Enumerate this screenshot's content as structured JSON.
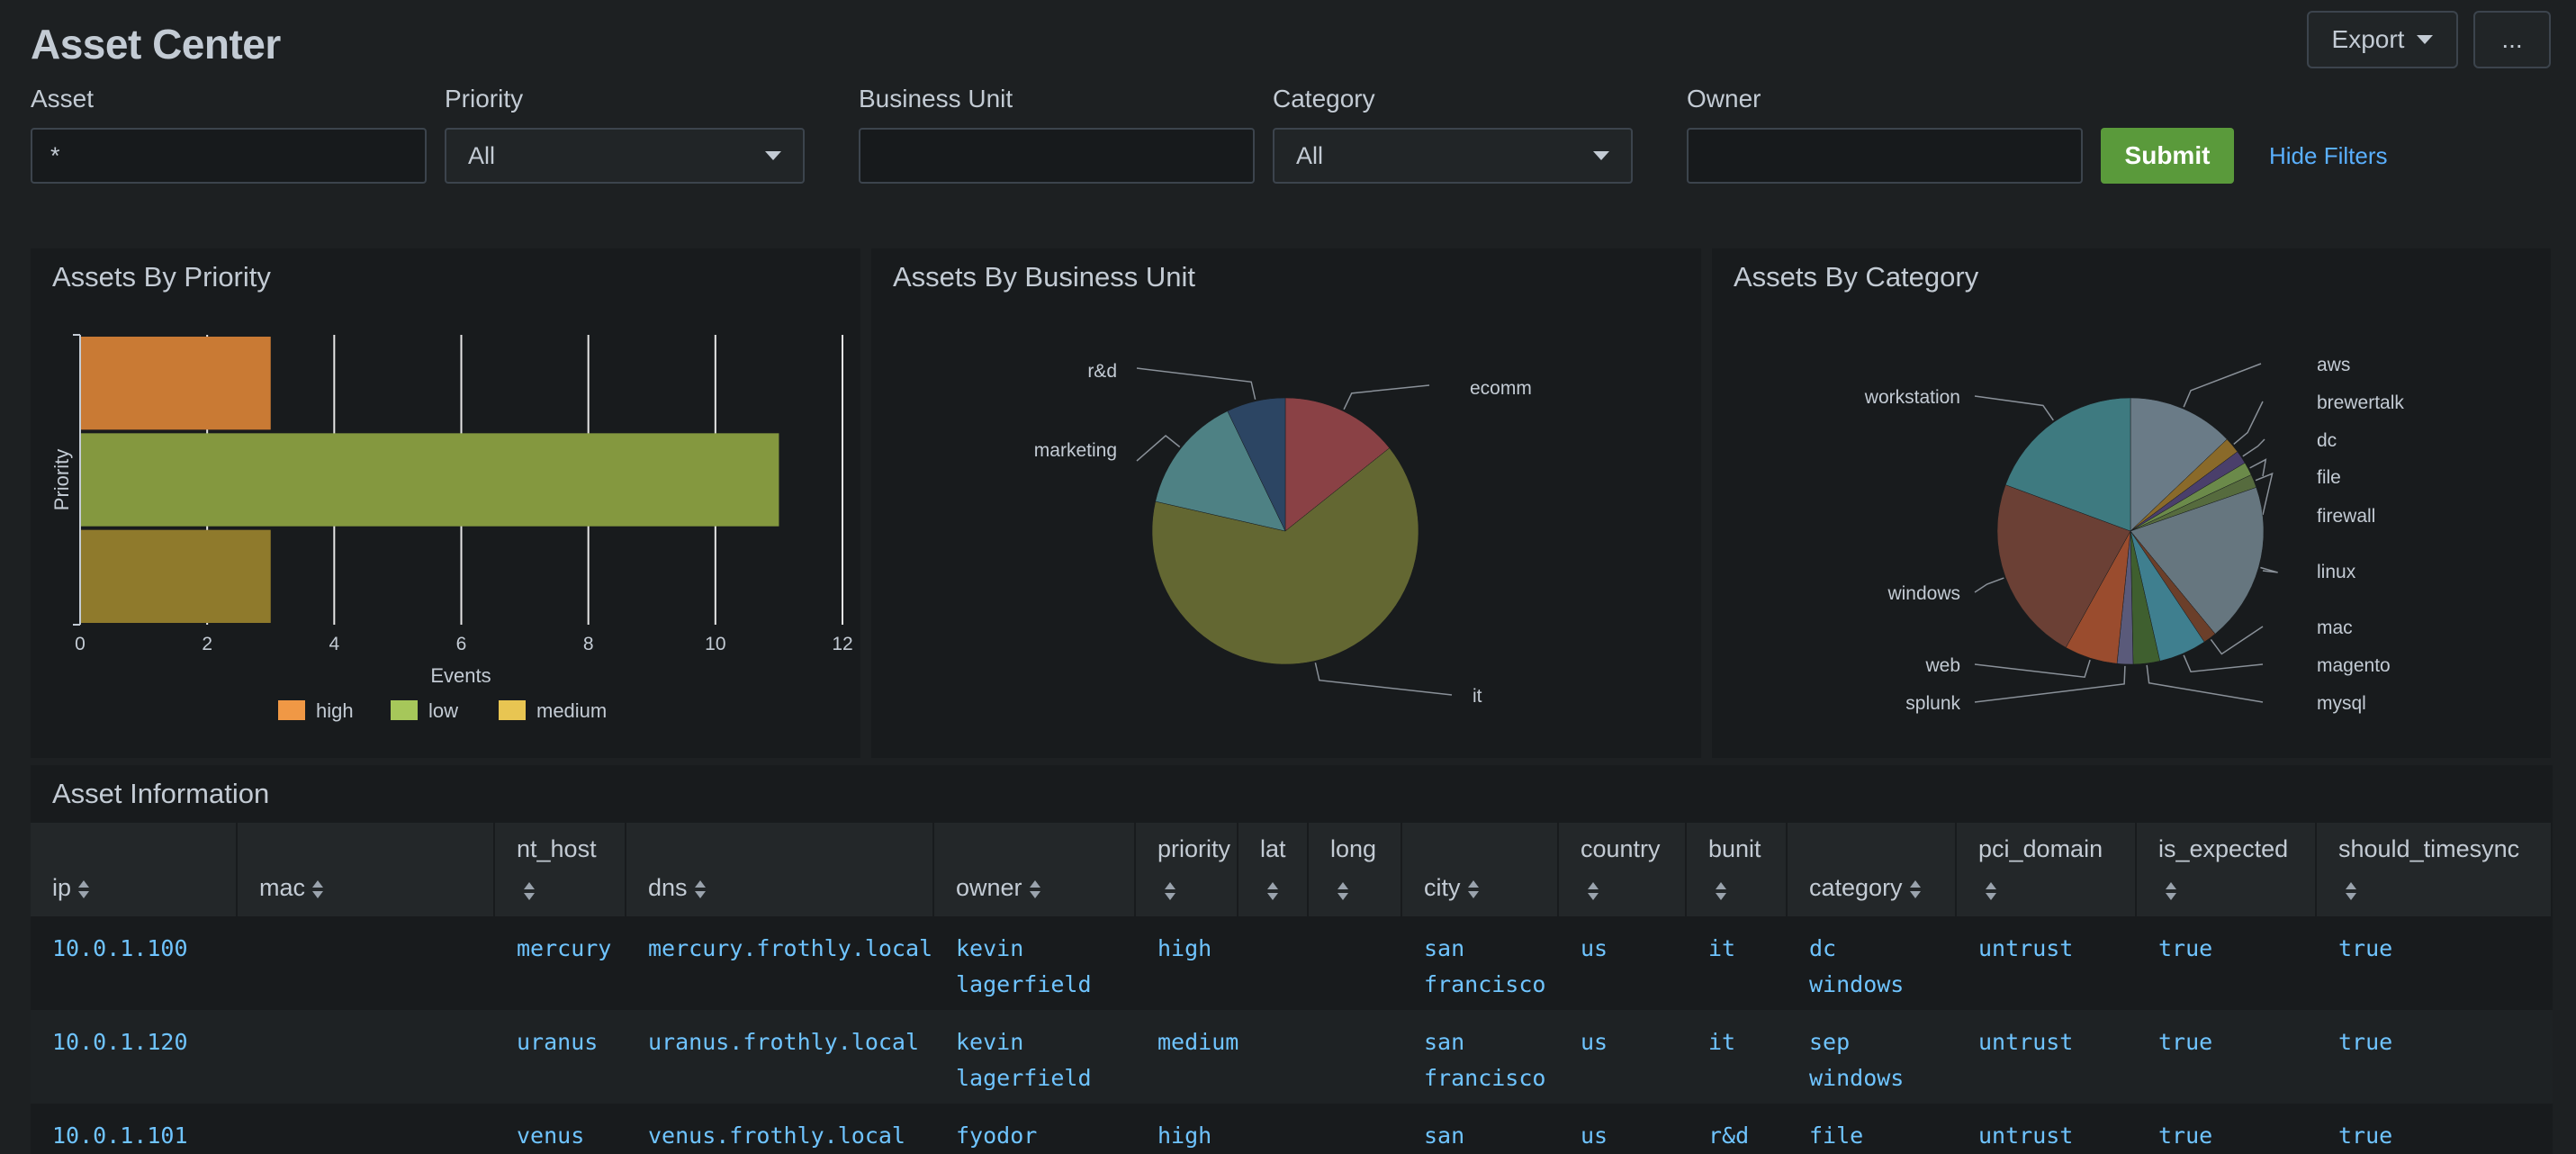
{
  "header": {
    "title": "Asset Center",
    "export_label": "Export",
    "more_label": "..."
  },
  "filters": {
    "asset": {
      "label": "Asset",
      "value": "*"
    },
    "priority": {
      "label": "Priority",
      "value": "All"
    },
    "business_unit": {
      "label": "Business Unit",
      "value": ""
    },
    "category": {
      "label": "Category",
      "value": "All"
    },
    "owner": {
      "label": "Owner",
      "value": ""
    },
    "submit_label": "Submit",
    "hide_filters_label": "Hide Filters"
  },
  "panels": {
    "priority": {
      "title": "Assets By Priority"
    },
    "business_unit": {
      "title": "Assets By Business Unit"
    },
    "category": {
      "title": "Assets By Category"
    }
  },
  "chart_data": [
    {
      "type": "bar",
      "orientation": "horizontal",
      "title": "Assets By Priority",
      "xlabel": "Events",
      "ylabel": "Priority",
      "categories": [
        "high",
        "low",
        "medium"
      ],
      "values": [
        3,
        11,
        3
      ],
      "colors": [
        "#c97a34",
        "#84983f",
        "#8f7a2c"
      ],
      "legend_colors": [
        "#f09845",
        "#a6c75a",
        "#e8c552"
      ],
      "xlim": [
        0,
        12
      ],
      "xticks": [
        "0",
        "2",
        "4",
        "6",
        "8",
        "10",
        "12"
      ],
      "grid": true,
      "legend": "bottom"
    },
    {
      "type": "pie",
      "title": "Assets By Business Unit",
      "labels": [
        "ecomm",
        "it",
        "marketing",
        "r&d"
      ],
      "values": [
        2,
        9,
        2,
        1
      ],
      "colors": [
        "#8a4145",
        "#636732",
        "#4e8184",
        "#2c4563"
      ]
    },
    {
      "type": "pie",
      "title": "Assets By Category",
      "labels": [
        "aws",
        "brewertalk",
        "dc",
        "file",
        "firewall",
        "linux",
        "mac",
        "magento",
        "mysql",
        "splunk",
        "web",
        "windows",
        "workstation"
      ],
      "values": [
        4,
        0.6,
        0.5,
        0.5,
        0.5,
        6,
        0.5,
        1.8,
        1,
        0.6,
        2,
        7,
        6
      ],
      "colors": [
        "#6a7b87",
        "#8a6a2a",
        "#4a3f6b",
        "#6b8a4a",
        "#566b3e",
        "#66767f",
        "#6b3f2a",
        "#3f7f8f",
        "#3f5f2f",
        "#5a5a7a",
        "#9a4c2e",
        "#6b4035",
        "#3e7a80"
      ]
    }
  ],
  "table": {
    "title": "Asset Information",
    "columns": [
      "ip",
      "mac",
      "nt_host",
      "dns",
      "owner",
      "priority",
      "lat",
      "long",
      "city",
      "country",
      "bunit",
      "category",
      "pci_domain",
      "is_expected",
      "should_timesync"
    ],
    "rows": [
      {
        "ip": "10.0.1.100",
        "mac": "",
        "nt_host": "mercury",
        "dns": "mercury.frothly.local",
        "owner": [
          "kevin",
          "lagerfield"
        ],
        "priority": "high",
        "lat": "",
        "long": "",
        "city": [
          "san",
          "francisco"
        ],
        "country": "us",
        "bunit": "it",
        "category": [
          "dc",
          "windows"
        ],
        "pci_domain": "untrust",
        "is_expected": "true",
        "should_timesync": "true"
      },
      {
        "ip": "10.0.1.120",
        "mac": "",
        "nt_host": "uranus",
        "dns": "uranus.frothly.local",
        "owner": [
          "kevin",
          "lagerfield"
        ],
        "priority": "medium",
        "lat": "",
        "long": "",
        "city": [
          "san",
          "francisco"
        ],
        "country": "us",
        "bunit": "it",
        "category": [
          "sep",
          "windows"
        ],
        "pci_domain": "untrust",
        "is_expected": "true",
        "should_timesync": "true"
      },
      {
        "ip": "10.0.1.101",
        "mac": "",
        "nt_host": "venus",
        "dns": "venus.frothly.local",
        "owner": [
          "fyodor"
        ],
        "priority": "high",
        "lat": "",
        "long": "",
        "city": [
          "san"
        ],
        "country": "us",
        "bunit": "r&d",
        "category": [
          "file"
        ],
        "pci_domain": "untrust",
        "is_expected": "true",
        "should_timesync": "true"
      }
    ]
  }
}
